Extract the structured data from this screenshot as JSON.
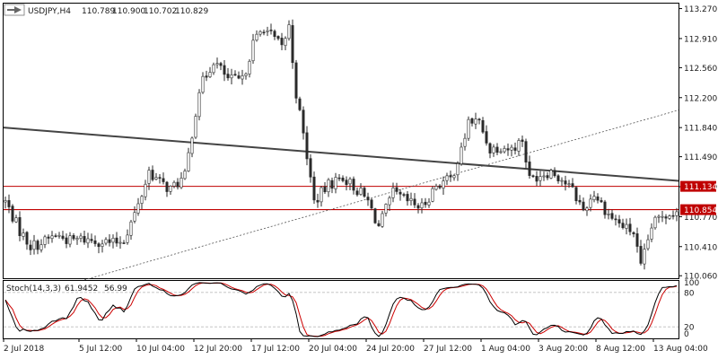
{
  "header": {
    "symbol": "USDJPY,H4",
    "open": "110.789",
    "high": "110.900",
    "low": "110.702",
    "close": "110.829"
  },
  "stoch": {
    "label": "Stoch(14,3,3)",
    "main": "61.9452",
    "signal": "56.99",
    "levels": [
      "100",
      "80",
      "20",
      "0"
    ],
    "level_values": [
      100,
      80,
      20,
      0
    ]
  },
  "price_axis": {
    "labels": [
      "113.270",
      "112.910",
      "112.560",
      "112.200",
      "111.840",
      "111.490",
      "111.130",
      "110.770",
      "110.410",
      "110.060"
    ],
    "values": [
      113.27,
      112.91,
      112.56,
      112.2,
      111.84,
      111.49,
      111.13,
      110.77,
      110.41,
      110.06
    ]
  },
  "time_axis": {
    "labels": [
      "2 Jul 2018",
      "5 Jul 12:00",
      "10 Jul 04:00",
      "12 Jul 20:00",
      "17 Jul 12:00",
      "20 Jul 04:00",
      "24 Jul 20:00",
      "27 Jul 12:00",
      "1 Aug 04:00",
      "3 Aug 20:00",
      "8 Aug 12:00",
      "13 Aug 04:00"
    ],
    "bar_index": [
      0,
      21,
      37,
      53,
      69,
      85,
      101,
      117,
      133,
      149,
      165,
      181
    ]
  },
  "colors": {
    "bull_body": "#ffffff",
    "bear_body": "#2b2b2b",
    "wick": "#2b2b2b",
    "level_line": "#c00000",
    "trend_line": "#444444",
    "dashed_line": "#555555",
    "stoch_main": "#000000",
    "stoch_signal": "#cc0000",
    "stoch_level": "#bdbdbd"
  },
  "chart_data": {
    "type": "candlestick",
    "symbol": "USDJPY",
    "timeframe": "H4",
    "ylim": [
      110.03,
      113.33
    ],
    "level_lines": [
      {
        "value": 111.134,
        "label": "111.134"
      },
      {
        "value": 110.854,
        "label": "110.854"
      }
    ],
    "trend_line": {
      "x": [
        0,
        188
      ],
      "y": [
        111.84,
        111.2
      ]
    },
    "dashed_trendline": {
      "x": [
        22,
        188
      ],
      "y": [
        110.01,
        112.05
      ]
    },
    "candle_count": 188,
    "anchors": {
      "bar": [
        0,
        4,
        7,
        10,
        14,
        18,
        21,
        26,
        30,
        33,
        37,
        40,
        43,
        46,
        50,
        54,
        58,
        62,
        66,
        69,
        72,
        75,
        77,
        79,
        81,
        84,
        86,
        90,
        94,
        99,
        101,
        104,
        108,
        112,
        116,
        120,
        124,
        127,
        129,
        132,
        135,
        138,
        141,
        144,
        146,
        149,
        152,
        155,
        158,
        161,
        164,
        168,
        172,
        175,
        177,
        180,
        183,
        187
      ],
      "close": [
        110.95,
        110.6,
        110.42,
        110.45,
        110.55,
        110.48,
        110.5,
        110.48,
        110.45,
        110.5,
        110.9,
        111.32,
        111.18,
        111.1,
        111.25,
        112.3,
        112.65,
        112.42,
        112.4,
        112.85,
        113.05,
        112.9,
        112.8,
        113.05,
        112.25,
        111.5,
        110.95,
        111.15,
        111.25,
        111.05,
        110.95,
        110.65,
        111.05,
        110.95,
        110.88,
        111.15,
        111.22,
        111.55,
        111.92,
        111.9,
        111.58,
        111.62,
        111.58,
        111.7,
        111.22,
        111.28,
        111.32,
        111.22,
        111.08,
        110.85,
        111.05,
        110.8,
        110.65,
        110.58,
        110.15,
        110.65,
        110.8,
        110.829
      ]
    }
  }
}
